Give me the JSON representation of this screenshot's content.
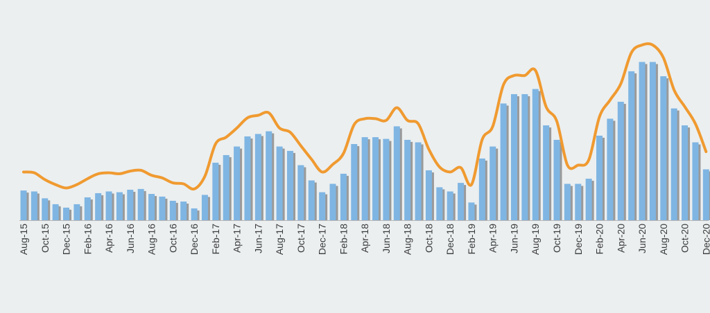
{
  "chart_data": {
    "type": "bar",
    "title": "",
    "xlabel": "",
    "ylabel": "",
    "ylim": [
      0,
      100
    ],
    "grid": false,
    "legend": "none",
    "colors": {
      "background": "#ebeff0",
      "bar": "#7fb5e2",
      "bar_shadow": "#9a9a9a",
      "line": "#f09a30",
      "axis": "#b5b5b5"
    },
    "categories": [
      "Aug-15",
      "Sep-15",
      "Oct-15",
      "Nov-15",
      "Dec-15",
      "Jan-16",
      "Feb-16",
      "Mar-16",
      "Apr-16",
      "May-16",
      "Jun-16",
      "Jul-16",
      "Aug-16",
      "Sep-16",
      "Oct-16",
      "Nov-16",
      "Dec-16",
      "Jan-17",
      "Feb-17",
      "Mar-17",
      "Apr-17",
      "May-17",
      "Jun-17",
      "Jul-17",
      "Aug-17",
      "Sep-17",
      "Oct-17",
      "Nov-17",
      "Dec-17",
      "Jan-18",
      "Feb-18",
      "Mar-18",
      "Apr-18",
      "May-18",
      "Jun-18",
      "Jul-18",
      "Aug-18",
      "Sep-18",
      "Oct-18",
      "Nov-18",
      "Dec-18",
      "Jan-19",
      "Feb-19",
      "Mar-19",
      "Apr-19",
      "May-19",
      "Jun-19",
      "Jul-19",
      "Aug-19",
      "Sep-19",
      "Oct-19",
      "Nov-19",
      "Dec-19",
      "Jan-20",
      "Feb-20",
      "Mar-20",
      "Apr-20",
      "May-20",
      "Jun-20",
      "Jul-20",
      "Aug-20",
      "Sep-20",
      "Oct-20",
      "Nov-20",
      "Dec-20"
    ],
    "tick_labels": [
      "Aug-15",
      "Oct-15",
      "Dec-15",
      "Feb-16",
      "Apr-16",
      "Jun-16",
      "Aug-16",
      "Oct-16",
      "Dec-16",
      "Feb-17",
      "Apr-17",
      "Jun-17",
      "Aug-17",
      "Oct-17",
      "Dec-17",
      "Feb-18",
      "Apr-18",
      "Jun-18",
      "Aug-18",
      "Oct-18",
      "Dec-18",
      "Feb-19",
      "Apr-19",
      "Jun-19",
      "Aug-19",
      "Oct-19",
      "Dec-19",
      "Feb-20",
      "Apr-20",
      "Jun-20",
      "Aug-20",
      "Oct-20",
      "Dec-20"
    ],
    "series": [
      {
        "type": "bar",
        "values": [
          15.6,
          15.1,
          11.5,
          8.4,
          6.6,
          8.4,
          12.0,
          14.2,
          15.1,
          14.7,
          16.0,
          16.4,
          13.8,
          12.4,
          10.2,
          9.8,
          6.2,
          13.3,
          30.2,
          34.2,
          38.7,
          44.0,
          45.3,
          46.7,
          38.7,
          36.4,
          28.9,
          20.9,
          14.7,
          19.1,
          24.4,
          40.0,
          43.6,
          43.6,
          42.7,
          49.3,
          42.2,
          40.9,
          26.2,
          17.3,
          15.1,
          19.6,
          9.3,
          32.4,
          38.7,
          61.3,
          66.2,
          66.2,
          68.9,
          49.8,
          42.2,
          19.1,
          19.1,
          21.8,
          44.4,
          53.3,
          62.2,
          78.2,
          83.1,
          83.1,
          75.6,
          58.7,
          49.8,
          40.9,
          26.7
        ]
      },
      {
        "type": "line",
        "values": [
          25.3,
          24.9,
          21.3,
          18.7,
          16.9,
          18.7,
          21.8,
          24.4,
          24.9,
          24.4,
          25.8,
          26.2,
          23.6,
          22.2,
          19.6,
          19.1,
          16.4,
          23.1,
          40.0,
          43.6,
          48.4,
          53.8,
          55.1,
          56.4,
          48.4,
          46.2,
          39.1,
          32.0,
          25.3,
          29.3,
          35.1,
          50.2,
          53.3,
          53.3,
          52.4,
          59.1,
          52.4,
          50.7,
          37.3,
          28.0,
          25.3,
          27.6,
          18.7,
          42.2,
          49.3,
          71.1,
          76.0,
          76.0,
          78.7,
          59.6,
          52.0,
          28.9,
          28.9,
          31.6,
          54.2,
          63.1,
          71.6,
          88.0,
          92.0,
          92.0,
          85.3,
          68.4,
          59.6,
          50.7,
          36.0
        ]
      }
    ]
  }
}
